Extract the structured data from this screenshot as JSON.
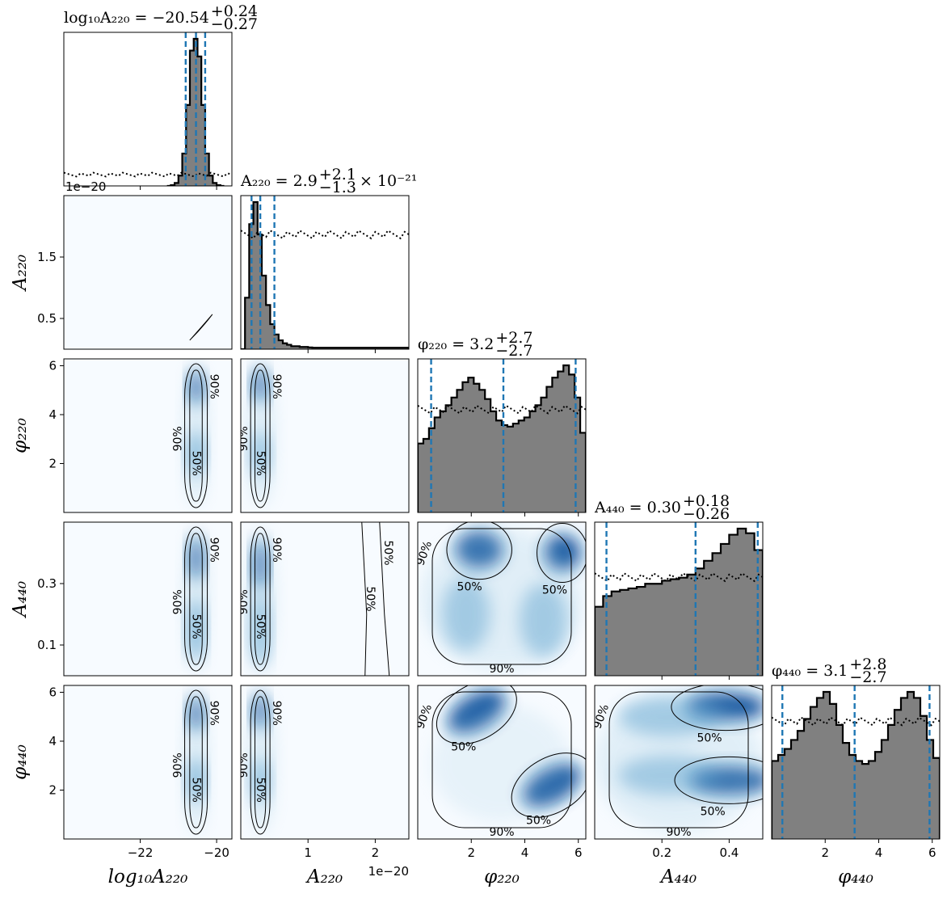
{
  "chart_data": {
    "type": "corner",
    "parameters": [
      {
        "id": "logA220",
        "axis_label": "log₁₀A₂₂₀",
        "title": "log₁₀A₂₂₀ = −20.54⁺⁰·²⁴₋₀.₂₇",
        "title_main": "log₁₀A₂₂₀ = −20.54",
        "title_up": "+0.24",
        "title_down": "−0.27",
        "range": [
          -24.0,
          -19.6
        ],
        "ticks": [
          -22,
          -20
        ],
        "tick_labels": [
          "−22",
          "−20"
        ],
        "quantiles": [
          -20.81,
          -20.54,
          -20.3
        ],
        "posterior_hist": [
          0.0,
          0.005,
          0.02,
          0.07,
          0.22,
          0.55,
          0.92,
          1.0,
          0.88,
          0.55,
          0.22,
          0.07,
          0.02,
          0.005,
          0.0
        ],
        "posterior_hist_range": [
          -21.3,
          -19.8
        ],
        "prior_level": 0.09
      },
      {
        "id": "A220",
        "axis_label": "A₂₂₀",
        "title": "A₂₂₀ = 2.9⁺²·¹₋₁.₃ × 10⁻²¹",
        "title_main": "A₂₂₀ = 2.9",
        "title_up": "+2.1",
        "title_down": "−1.3",
        "title_suffix": "× 10⁻²¹",
        "offset_text": "1e−20",
        "range": [
          0.0,
          2.5
        ],
        "ticks": [
          0.5,
          1.5
        ],
        "tick_labels": [
          "0.5",
          "1.5"
        ],
        "bottom_ticks": [
          1,
          2
        ],
        "bottom_tick_labels": [
          "1",
          "2"
        ],
        "quantiles": [
          0.16,
          0.29,
          0.5
        ],
        "posterior_hist": [
          0.0,
          0.35,
          0.85,
          1.0,
          0.78,
          0.5,
          0.3,
          0.17,
          0.1,
          0.06,
          0.04,
          0.03,
          0.02,
          0.02,
          0.015,
          0.015,
          0.012,
          0.01,
          0.01,
          0.01,
          0.01,
          0.01,
          0.01,
          0.01,
          0.01,
          0.01,
          0.01,
          0.01,
          0.01,
          0.01,
          0.01,
          0.01,
          0.01,
          0.01,
          0.01,
          0.01,
          0.01,
          0.01,
          0.01,
          0.01
        ],
        "posterior_hist_range": [
          0.0,
          2.5
        ],
        "prior_level": 0.78
      },
      {
        "id": "phi220",
        "axis_label": "φ₂₂₀",
        "title": "φ₂₂₀ = 3.2⁺²·⁷₋₂.₇",
        "title_main": "φ₂₂₀ = 3.2",
        "title_up": "+2.7",
        "title_down": "−2.7",
        "range": [
          0.0,
          6.28
        ],
        "ticks": [
          2,
          4,
          6
        ],
        "tick_labels": [
          "2",
          "4",
          "6"
        ],
        "quantiles": [
          0.5,
          3.2,
          5.9
        ],
        "posterior_hist": [
          0.45,
          0.48,
          0.55,
          0.62,
          0.66,
          0.7,
          0.75,
          0.8,
          0.85,
          0.88,
          0.84,
          0.8,
          0.74,
          0.66,
          0.6,
          0.57,
          0.56,
          0.58,
          0.6,
          0.62,
          0.66,
          0.7,
          0.75,
          0.82,
          0.88,
          0.92,
          0.96,
          0.9,
          0.75,
          0.52
        ],
        "posterior_hist_range": [
          0.0,
          6.28
        ],
        "prior_level": 0.7
      },
      {
        "id": "A440",
        "axis_label": "A₄₄₀",
        "title": "A₄₄₀ = 0.30⁺⁰·¹⁸₋₀.₂₆",
        "title_main": "A₄₄₀ = 0.30",
        "title_up": "+0.18",
        "title_down": "−0.26",
        "range": [
          0.0,
          0.5
        ],
        "ticks": [
          0.1,
          0.3
        ],
        "tick_labels": [
          "0.1",
          "0.3"
        ],
        "bottom_ticks": [
          0.2,
          0.4
        ],
        "bottom_tick_labels": [
          "0.2",
          "0.4"
        ],
        "quantiles": [
          0.035,
          0.3,
          0.485
        ],
        "posterior_hist": [
          0.45,
          0.52,
          0.55,
          0.56,
          0.57,
          0.58,
          0.6,
          0.6,
          0.62,
          0.63,
          0.64,
          0.66,
          0.7,
          0.75,
          0.8,
          0.86,
          0.92,
          0.96,
          0.93,
          0.82
        ],
        "posterior_hist_range": [
          0.0,
          0.5
        ],
        "prior_level": 0.67
      },
      {
        "id": "phi440",
        "axis_label": "φ₄₄₀",
        "title": "φ₄₄₀ = 3.1⁺²·⁸₋₂.₇",
        "title_main": "φ₄₄₀ = 3.1",
        "title_up": "+2.8",
        "title_down": "−2.7",
        "range": [
          0.0,
          6.28
        ],
        "ticks": [
          2,
          4,
          6
        ],
        "tick_labels": [
          "2",
          "4",
          "6"
        ],
        "quantiles": [
          0.4,
          3.1,
          5.9
        ],
        "posterior_hist": [
          0.52,
          0.56,
          0.6,
          0.66,
          0.72,
          0.8,
          0.88,
          0.94,
          0.98,
          0.9,
          0.76,
          0.64,
          0.56,
          0.52,
          0.5,
          0.52,
          0.58,
          0.66,
          0.76,
          0.86,
          0.94,
          0.98,
          0.94,
          0.82,
          0.66,
          0.54
        ],
        "posterior_hist_range": [
          0.0,
          6.28
        ],
        "prior_level": 0.8
      }
    ],
    "contour_levels": [
      "50%",
      "90%"
    ],
    "colors": {
      "quantile_line": "#1f77b4",
      "hist_fill": "#808080",
      "hist_edge": "#000000",
      "density_low": "#f7fbff",
      "density_high": "#08306b",
      "contour": "#000000"
    }
  }
}
